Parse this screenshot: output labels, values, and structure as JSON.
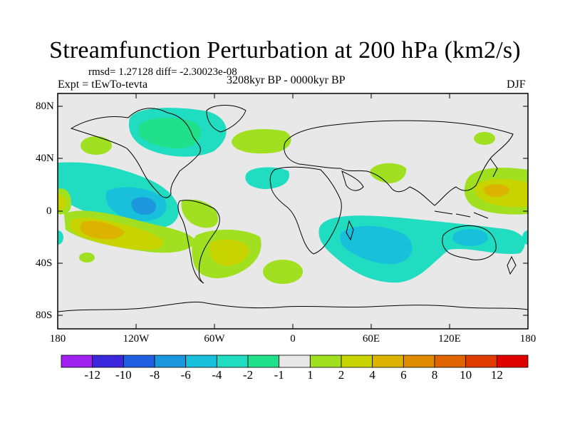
{
  "title": "Streamfunction Perturbation at 200 hPa (km2/s)",
  "stats": "rmsd= 1.27128 diff= -2.30023e-08",
  "experiment": "Expt = tEwTo-tevta",
  "period": "3208kyr BP - 0000kyr BP",
  "season": "DJF",
  "map": {
    "lat_labels": [
      "80N",
      "40N",
      "0",
      "40S",
      "80S"
    ],
    "lon_labels": [
      "180",
      "120W",
      "60W",
      "0",
      "60E",
      "120E",
      "180"
    ]
  },
  "colorbar": {
    "labels": [
      "-12",
      "-10",
      "-8",
      "-6",
      "-4",
      "-2",
      "-1",
      "1",
      "2",
      "4",
      "6",
      "8",
      "10",
      "12"
    ],
    "colors": [
      "#a020f0",
      "#3c28dc",
      "#2060e0",
      "#1c96dc",
      "#18c0dc",
      "#20dcc0",
      "#20e08c",
      "#e8e8e8",
      "#a0e020",
      "#c8d400",
      "#dcb400",
      "#e08c00",
      "#e06400",
      "#e03c00",
      "#e00000"
    ]
  },
  "colors": {
    "land_outline": "#000000",
    "background": "#e8e8e8"
  }
}
